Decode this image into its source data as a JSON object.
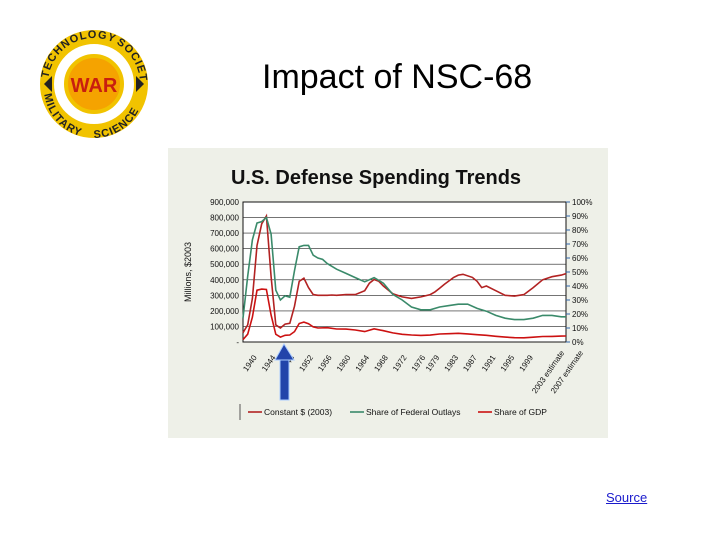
{
  "slide": {
    "title": "Impact of NSC-68",
    "source_link": "Source"
  },
  "logo": {
    "center_text": "WAR",
    "ring_top_words": [
      "TECHNOLOGY",
      "SOCIETY"
    ],
    "ring_bottom_words": [
      "MILITARY",
      "SCIENCE"
    ]
  },
  "colors": {
    "constant_dollars": "#b22222",
    "federal_outlays": "#3a8a6a",
    "gdp": "#cc1111",
    "arrow": "#2244aa",
    "plot_bg": "#ffffff",
    "panel_bg": "#eef0e8"
  },
  "chart_data": {
    "type": "line",
    "title": "U.S. Defense Spending Trends",
    "ylabel": "Millions, $2003",
    "ylim": [
      0,
      900000
    ],
    "y2lim": [
      0,
      100
    ],
    "left_ticks": [
      "900,000",
      "800,000",
      "700,000",
      "600,000",
      "500,000",
      "400,000",
      "300,000",
      "200,000",
      "100,000",
      "-"
    ],
    "right_ticks": [
      "100%",
      "90%",
      "80%",
      "70%",
      "60%",
      "50%",
      "40%",
      "30%",
      "20%",
      "10%",
      "0%"
    ],
    "x_ticks": [
      "1940",
      "1944",
      "1948",
      "1952",
      "1956",
      "1960",
      "1964",
      "1968",
      "1972",
      "1976",
      "1979",
      "1983",
      "1987",
      "1991",
      "1995",
      "1999"
    ],
    "x_tick_extra": [
      "2003 estimate",
      "2007 estimate"
    ],
    "xlim": [
      1940,
      2009
    ],
    "grid": true,
    "legend_position": "bottom",
    "annotation": "arrow pointing at 1950",
    "series": [
      {
        "name": "Constant $ (2003)",
        "axis": "left",
        "x": [
          1940,
          1941,
          1942,
          1943,
          1944,
          1945,
          1946,
          1947,
          1948,
          1949,
          1950,
          1951,
          1952,
          1953,
          1954,
          1955,
          1956,
          1957,
          1958,
          1959,
          1960,
          1962,
          1964,
          1966,
          1967,
          1968,
          1969,
          1970,
          1972,
          1974,
          1976,
          1978,
          1980,
          1981,
          1982,
          1983,
          1985,
          1986,
          1987,
          1989,
          1990,
          1991,
          1992,
          1994,
          1996,
          1998,
          2000,
          2002,
          2004,
          2006,
          2008,
          2009
        ],
        "y": [
          60000,
          110000,
          280000,
          620000,
          760000,
          810000,
          420000,
          110000,
          90000,
          115000,
          120000,
          230000,
          390000,
          410000,
          350000,
          305000,
          300000,
          300000,
          300000,
          302000,
          300000,
          305000,
          305000,
          330000,
          378000,
          402000,
          390000,
          360000,
          310000,
          290000,
          280000,
          290000,
          305000,
          322000,
          345000,
          370000,
          415000,
          430000,
          435000,
          415000,
          390000,
          350000,
          360000,
          330000,
          300000,
          295000,
          305000,
          350000,
          400000,
          420000,
          430000,
          440000
        ]
      },
      {
        "name": "Share of Federal Outlays",
        "axis": "right",
        "x": [
          1940,
          1941,
          1942,
          1943,
          1944,
          1945,
          1946,
          1947,
          1948,
          1949,
          1950,
          1951,
          1952,
          1953,
          1954,
          1955,
          1956,
          1957,
          1958,
          1960,
          1962,
          1964,
          1966,
          1968,
          1970,
          1972,
          1974,
          1976,
          1978,
          1980,
          1982,
          1984,
          1986,
          1988,
          1990,
          1992,
          1994,
          1996,
          1998,
          2000,
          2002,
          2004,
          2006,
          2008,
          2009
        ],
        "y": [
          17,
          47,
          73,
          85,
          86,
          89,
          77,
          37,
          30,
          33,
          32,
          51,
          68,
          69,
          69,
          62,
          60,
          59,
          56,
          52,
          49,
          46,
          43,
          46,
          42,
          34,
          30,
          25,
          23,
          23,
          25,
          26,
          27,
          27,
          24,
          22,
          19,
          17,
          16,
          16,
          17,
          19,
          19,
          18,
          18
        ]
      },
      {
        "name": "Share of GDP",
        "axis": "right",
        "x": [
          1940,
          1941,
          1942,
          1943,
          1944,
          1945,
          1946,
          1947,
          1948,
          1949,
          1950,
          1951,
          1952,
          1953,
          1954,
          1955,
          1956,
          1958,
          1960,
          1962,
          1964,
          1966,
          1968,
          1970,
          1972,
          1974,
          1976,
          1978,
          1980,
          1982,
          1984,
          1986,
          1988,
          1990,
          1992,
          1994,
          1996,
          1998,
          2000,
          2002,
          2004,
          2006,
          2008,
          2009
        ],
        "y": [
          1.7,
          5.6,
          17.8,
          37.0,
          37.8,
          37.5,
          19.2,
          5.5,
          3.5,
          4.8,
          5.0,
          7.4,
          13.2,
          14.2,
          13.1,
          10.8,
          10.0,
          10.2,
          9.3,
          9.2,
          8.6,
          7.4,
          9.4,
          8.1,
          6.5,
          5.5,
          5.0,
          4.7,
          4.9,
          5.7,
          5.9,
          6.2,
          5.8,
          5.2,
          4.8,
          4.1,
          3.5,
          3.1,
          3.0,
          3.4,
          3.9,
          4.0,
          4.2,
          4.3
        ]
      }
    ]
  }
}
